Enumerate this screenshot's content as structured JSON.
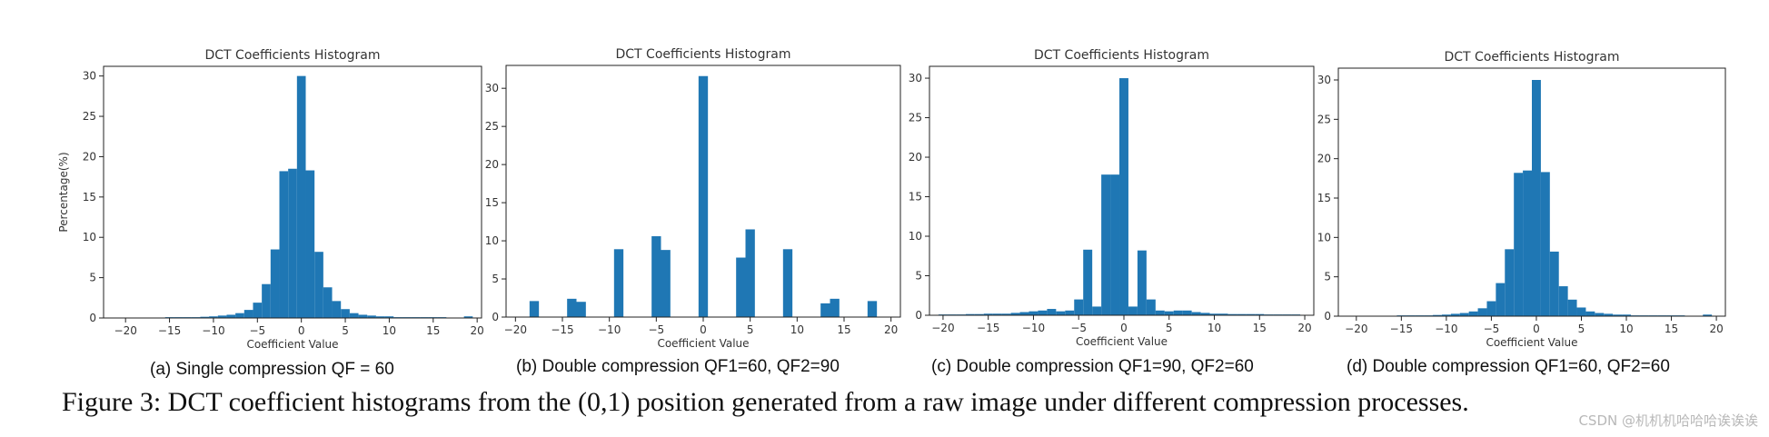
{
  "chart_data": [
    {
      "type": "bar",
      "title": "DCT Coefficients Histogram",
      "xlabel": "Coefficient Value",
      "ylabel": "Percentage(%)",
      "xlim": [
        -22.5,
        20.5
      ],
      "ylim": [
        0,
        31.2
      ],
      "xticks": [
        -20,
        -15,
        -10,
        -5,
        0,
        5,
        10,
        15,
        20
      ],
      "yticks": [
        0,
        5,
        10,
        15,
        20,
        25,
        30
      ],
      "bin_width": 1,
      "x": [
        -15,
        -14,
        -13,
        -12,
        -11,
        -10,
        -9,
        -8,
        -7,
        -6,
        -5,
        -4,
        -3,
        -2,
        -1,
        0,
        1,
        2,
        3,
        4,
        5,
        6,
        7,
        8,
        9,
        10,
        11,
        12,
        13,
        14,
        15,
        16,
        17,
        18,
        19
      ],
      "values": [
        0.1,
        0.1,
        0.1,
        0.1,
        0.15,
        0.2,
        0.3,
        0.4,
        0.6,
        1.0,
        1.9,
        4.2,
        8.5,
        18.2,
        18.5,
        30.0,
        18.3,
        8.2,
        3.8,
        2.1,
        1.1,
        0.6,
        0.4,
        0.3,
        0.2,
        0.2,
        0.1,
        0.1,
        0.1,
        0.1,
        0.1,
        0.1,
        0.05,
        0.05,
        0.2
      ],
      "caption": "(a) Single compression QF = 60"
    },
    {
      "type": "bar",
      "title": "DCT Coefficients Histogram",
      "xlabel": "Coefficient Value",
      "ylabel": "",
      "xlim": [
        -21,
        21
      ],
      "ylim": [
        0,
        33
      ],
      "xticks": [
        -20,
        -15,
        -10,
        -5,
        0,
        5,
        10,
        15,
        20
      ],
      "yticks": [
        0,
        5,
        10,
        15,
        20,
        25,
        30
      ],
      "bin_width": 1,
      "x": [
        -18,
        -14,
        -13,
        -9,
        -5,
        -4,
        0,
        4,
        5,
        9,
        13,
        14,
        18
      ],
      "values": [
        2.1,
        2.4,
        2.0,
        8.9,
        10.6,
        8.8,
        31.6,
        7.8,
        11.5,
        8.9,
        1.8,
        2.4,
        2.1
      ],
      "caption": "(b) Double compression QF1=60, QF2=90"
    },
    {
      "type": "bar",
      "title": "DCT Coefficients Histogram",
      "xlabel": "Coefficient Value",
      "ylabel": "",
      "xlim": [
        -21.5,
        21
      ],
      "ylim": [
        0,
        31.5
      ],
      "xticks": [
        -20,
        -15,
        -10,
        -5,
        0,
        5,
        10,
        15,
        20
      ],
      "yticks": [
        0,
        5,
        10,
        15,
        20,
        25,
        30
      ],
      "bin_width": 1,
      "x": [
        -20,
        -19,
        -18,
        -17,
        -16,
        -15,
        -14,
        -13,
        -12,
        -11,
        -10,
        -9,
        -8,
        -7,
        -6,
        -5,
        -4,
        -3,
        -2,
        -1,
        0,
        1,
        2,
        3,
        4,
        5,
        6,
        7,
        8,
        9,
        10,
        11,
        12,
        13,
        14,
        15,
        16,
        17,
        18,
        19
      ],
      "values": [
        0.1,
        0.1,
        0.1,
        0.15,
        0.15,
        0.2,
        0.2,
        0.2,
        0.3,
        0.4,
        0.5,
        0.6,
        0.8,
        0.5,
        0.6,
        2.0,
        8.3,
        1.1,
        17.8,
        17.8,
        30.0,
        1.1,
        8.2,
        2.0,
        0.6,
        0.5,
        0.6,
        0.6,
        0.4,
        0.3,
        0.2,
        0.2,
        0.15,
        0.15,
        0.15,
        0.15,
        0.1,
        0.1,
        0.1,
        0.1
      ],
      "caption": "(c) Double compression QF1=90, QF2=60"
    },
    {
      "type": "bar",
      "title": "DCT Coefficients Histogram",
      "xlabel": "Coefficient Value",
      "ylabel": "",
      "xlim": [
        -22,
        21
      ],
      "ylim": [
        0,
        31.5
      ],
      "xticks": [
        -20,
        -15,
        -10,
        -5,
        0,
        5,
        10,
        15,
        20
      ],
      "yticks": [
        0,
        5,
        10,
        15,
        20,
        25,
        30
      ],
      "bin_width": 1,
      "x": [
        -15,
        -14,
        -13,
        -12,
        -11,
        -10,
        -9,
        -8,
        -7,
        -6,
        -5,
        -4,
        -3,
        -2,
        -1,
        0,
        1,
        2,
        3,
        4,
        5,
        6,
        7,
        8,
        9,
        10,
        11,
        12,
        13,
        14,
        15,
        16,
        17,
        18,
        19
      ],
      "values": [
        0.1,
        0.1,
        0.1,
        0.1,
        0.15,
        0.2,
        0.3,
        0.4,
        0.6,
        1.0,
        1.9,
        4.2,
        8.5,
        18.2,
        18.5,
        30.0,
        18.3,
        8.2,
        3.8,
        2.1,
        1.1,
        0.6,
        0.4,
        0.3,
        0.2,
        0.2,
        0.1,
        0.1,
        0.1,
        0.1,
        0.1,
        0.1,
        0.05,
        0.05,
        0.2
      ],
      "caption": "(d) Double compression QF1=60, QF2=60"
    }
  ],
  "figure_caption": "Figure 3: DCT coefficient histograms from the (0,1) position generated from a raw image under different compression processes.",
  "watermark": "CSDN @机机机哈哈哈诶诶诶",
  "colors": {
    "bar": "#1f77b4",
    "axis": "#222222",
    "text": "#333333"
  }
}
